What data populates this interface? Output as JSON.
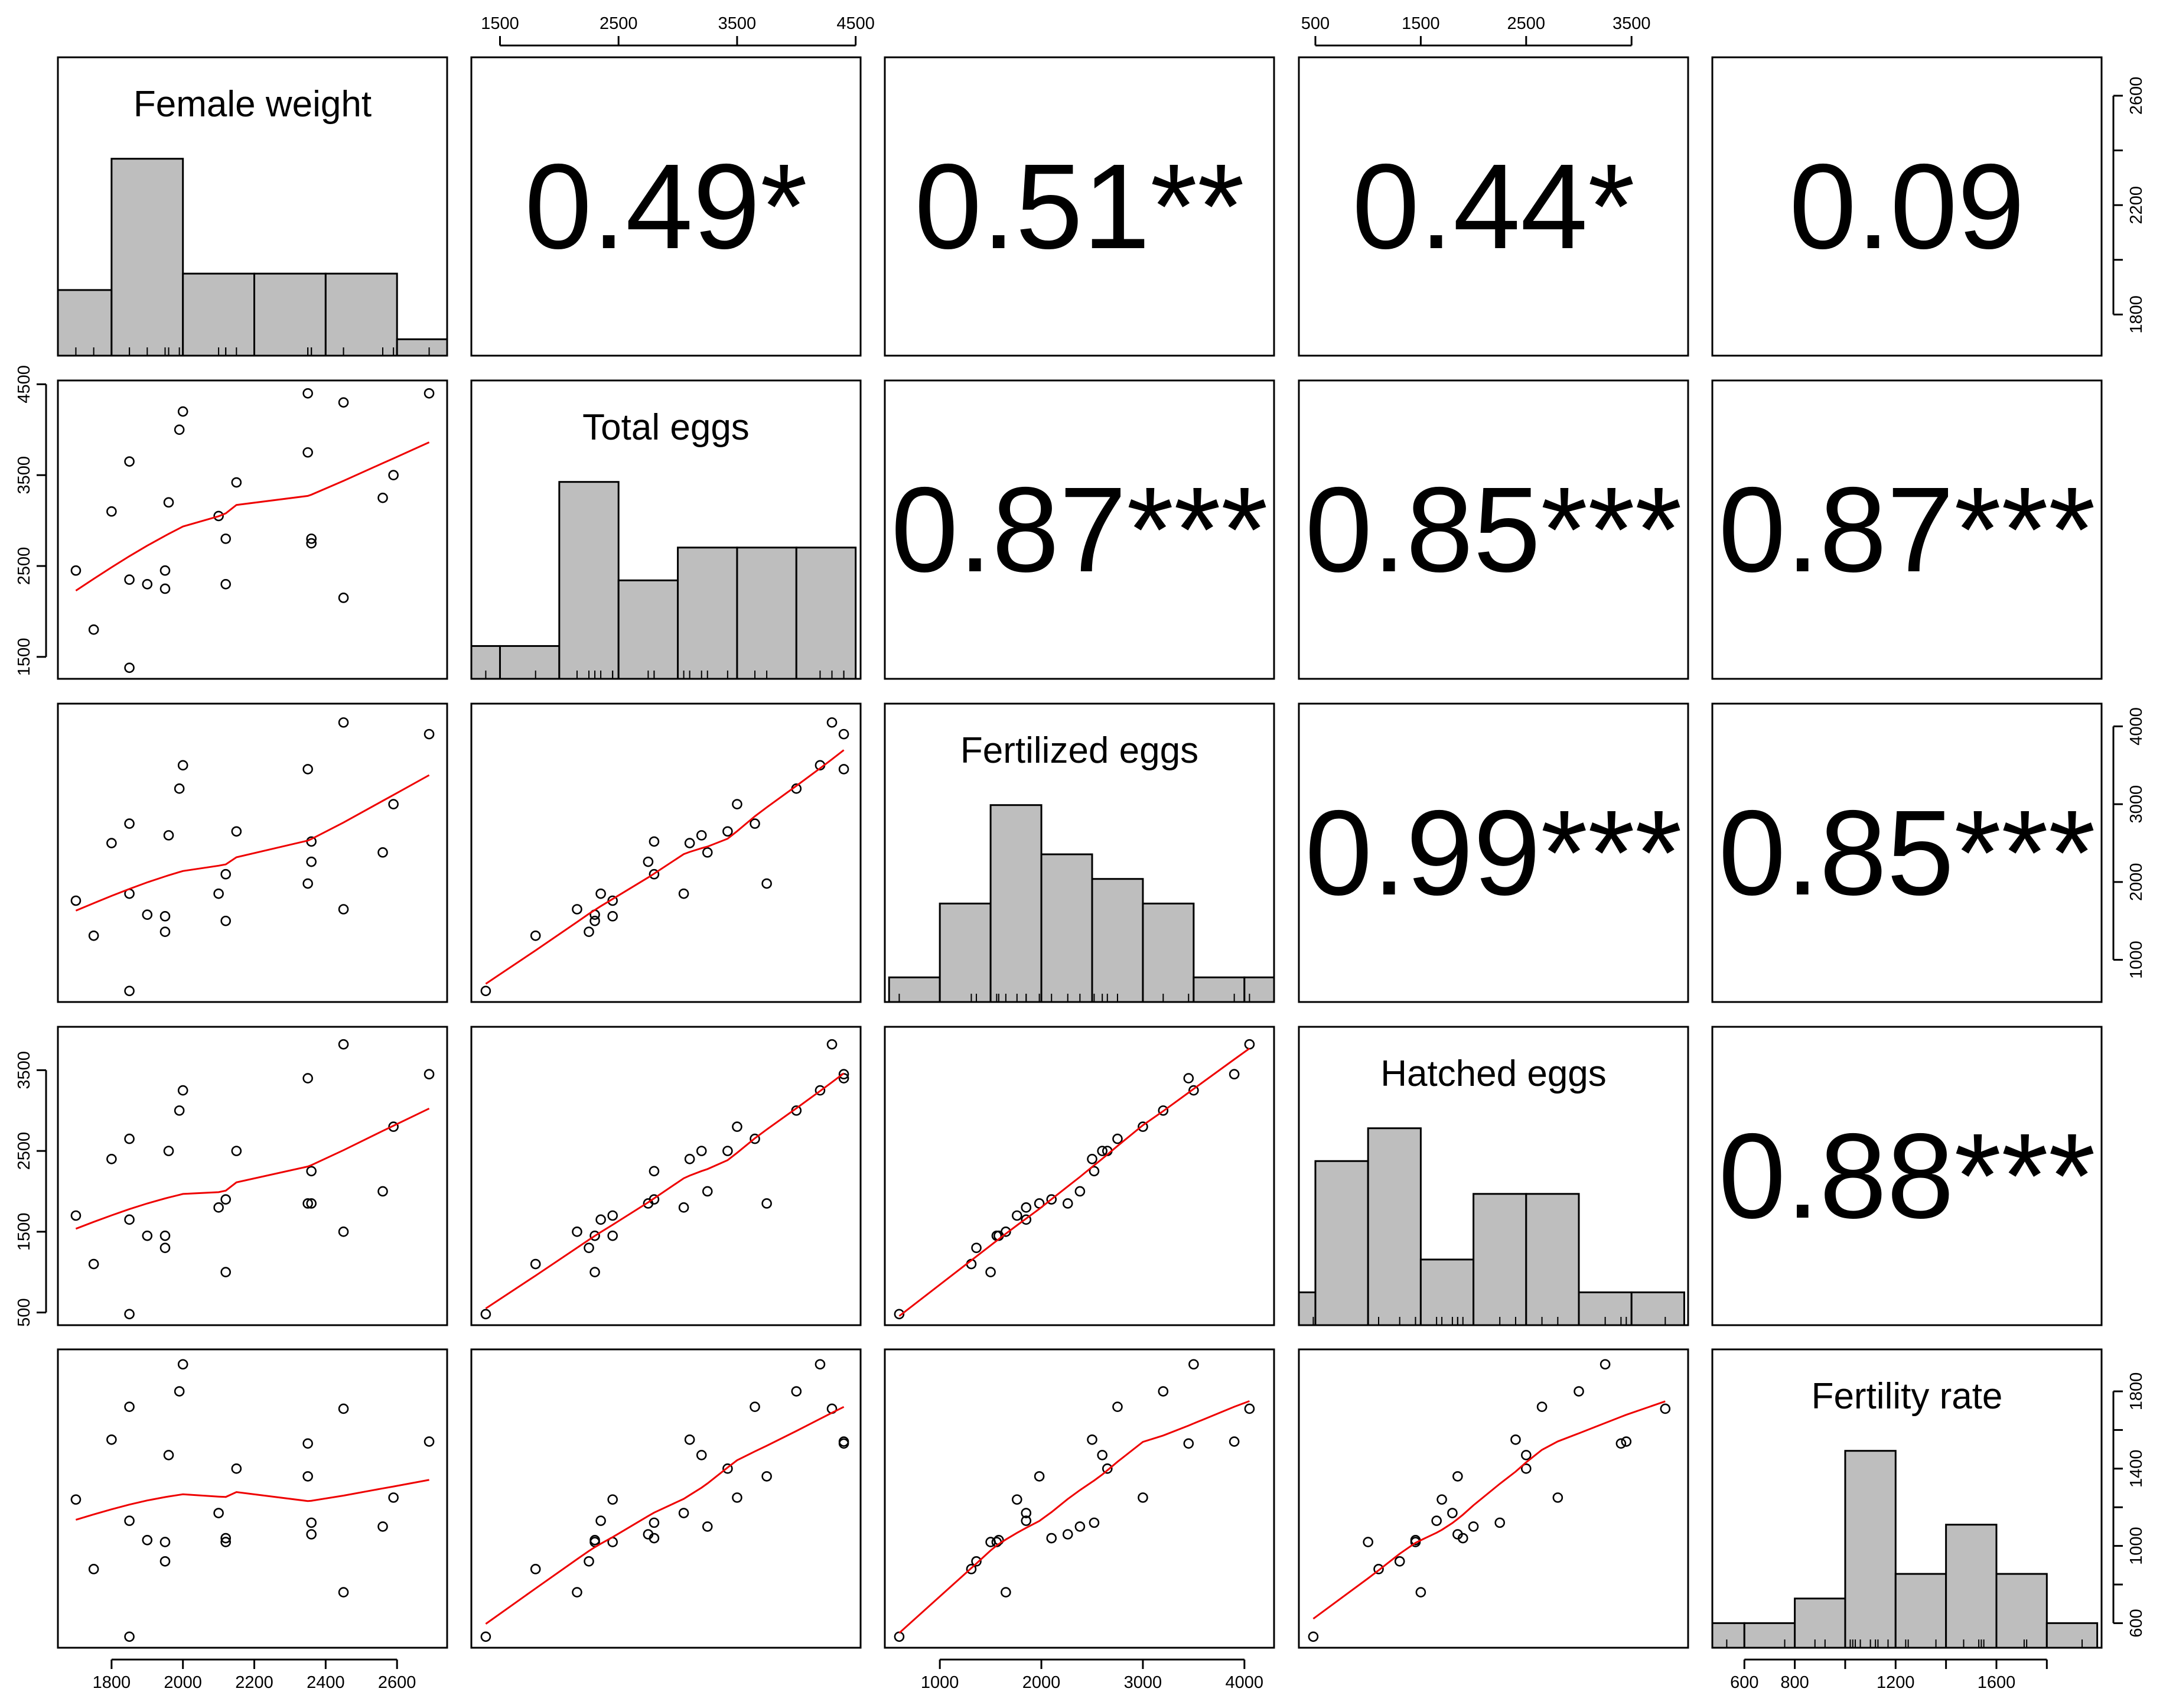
{
  "chart_data": {
    "type": "scatter-matrix",
    "title": "",
    "variables": [
      "Female weight",
      "Total eggs",
      "Fertilized eggs",
      "Hatched eggs",
      "Fertility rate"
    ],
    "ranges": [
      [
        1690,
        2700
      ],
      [
        1380,
        4420
      ],
      [
        600,
        4150
      ],
      [
        480,
        3900
      ],
      [
        530,
        1960
      ]
    ],
    "axis_ticks": [
      [
        "1800",
        "2000",
        "2200",
        "2400",
        "2600"
      ],
      [
        "1500",
        "2500",
        "3500",
        "4500"
      ],
      [
        "1000",
        "2000",
        "3000",
        "4000"
      ],
      [
        "500",
        "1500",
        "2500",
        "3500"
      ],
      [
        "600",
        "800",
        "1000",
        "1200",
        "1400",
        "1600",
        "1800"
      ]
    ],
    "bottom_axis_labels": {
      "female_weight": [
        "1800",
        "2000",
        "2200",
        "2400",
        "2600"
      ],
      "fertilized_eggs": [
        "1000",
        "2000",
        "3000",
        "4000"
      ],
      "fertility_rate": [
        "600",
        "800",
        "1200",
        "1600"
      ]
    },
    "top_axis_labels": {
      "total_eggs": [
        "1500",
        "2500",
        "3500",
        "4500"
      ],
      "hatched_eggs": [
        "500",
        "1500",
        "2500",
        "3500"
      ]
    },
    "left_axis_labels": {
      "total_eggs": [
        "1500",
        "2500",
        "3500",
        "4500"
      ],
      "hatched_eggs": [
        "500",
        "1500",
        "2500",
        "3500"
      ]
    },
    "right_axis_labels": {
      "female_weight": [
        "1800",
        "2200",
        "2600"
      ],
      "fertilized_eggs": [
        "1000",
        "2000",
        "3000",
        "4000"
      ],
      "fertility_rate": [
        "600",
        "1000",
        "1400",
        "1800"
      ]
    },
    "correlations": [
      {
        "row": 0,
        "col": 1,
        "label": "0.49*"
      },
      {
        "row": 0,
        "col": 2,
        "label": "0.51**"
      },
      {
        "row": 0,
        "col": 3,
        "label": "0.44*"
      },
      {
        "row": 0,
        "col": 4,
        "label": "0.09"
      },
      {
        "row": 1,
        "col": 2,
        "label": "0.87***"
      },
      {
        "row": 1,
        "col": 3,
        "label": "0.85***"
      },
      {
        "row": 1,
        "col": 4,
        "label": "0.87***"
      },
      {
        "row": 2,
        "col": 3,
        "label": "0.99***"
      },
      {
        "row": 2,
        "col": 4,
        "label": "0.85***"
      },
      {
        "row": 3,
        "col": 4,
        "label": "0.88***"
      }
    ],
    "histograms": [
      {
        "breaks": [
          1600,
          1800,
          2000,
          2200,
          2400,
          2600,
          2800
        ],
        "counts": [
          4,
          12,
          5,
          5,
          5,
          1
        ]
      },
      {
        "breaks": [
          1000,
          1500,
          2000,
          2500,
          3000,
          3500,
          4000,
          4500
        ],
        "counts": [
          1,
          1,
          6,
          3,
          4,
          4,
          4
        ]
      },
      {
        "breaks": [
          500,
          1000,
          1500,
          2000,
          2500,
          3000,
          3500,
          4000,
          4500
        ],
        "counts": [
          1,
          4,
          8,
          6,
          5,
          4,
          1,
          1
        ]
      },
      {
        "breaks": [
          0,
          500,
          1000,
          1500,
          2000,
          2500,
          3000,
          3500,
          4000
        ],
        "counts": [
          1,
          5,
          6,
          2,
          4,
          4,
          1,
          1
        ]
      },
      {
        "breaks": [
          400,
          600,
          800,
          1000,
          1200,
          1400,
          1600,
          1800,
          2000
        ],
        "counts": [
          1,
          1,
          2,
          8,
          3,
          5,
          3,
          1
        ]
      }
    ],
    "observations": [
      [
        1700,
        2450,
        1760,
        1700,
        1240
      ],
      [
        1750,
        1800,
        1310,
        1100,
        880
      ],
      [
        1800,
        3100,
        2500,
        2400,
        1550
      ],
      [
        1850,
        2350,
        1850,
        1650,
        1130
      ],
      [
        1850,
        1380,
        600,
        480,
        530
      ],
      [
        1850,
        3650,
        2750,
        2650,
        1720
      ],
      [
        1900,
        2300,
        1580,
        1450,
        1030
      ],
      [
        1950,
        2250,
        1360,
        1300,
        920
      ],
      [
        1950,
        2450,
        1560,
        1450,
        1020
      ],
      [
        1960,
        3200,
        2600,
        2500,
        1470
      ],
      [
        1990,
        4000,
        3200,
        3000,
        1800
      ],
      [
        2000,
        4200,
        3500,
        3250,
        1940
      ],
      [
        2100,
        3050,
        1850,
        1800,
        1170
      ],
      [
        2120,
        2800,
        2100,
        1900,
        1040
      ],
      [
        2120,
        2300,
        1500,
        1000,
        1020
      ],
      [
        2150,
        3420,
        2650,
        2500,
        1400
      ],
      [
        2350,
        4400,
        3450,
        3400,
        1530
      ],
      [
        2350,
        3750,
        1980,
        1850,
        1360
      ],
      [
        2360,
        2800,
        2520,
        2250,
        1120
      ],
      [
        2360,
        2750,
        2260,
        1850,
        1060
      ],
      [
        2450,
        4300,
        4050,
        3820,
        1710
      ],
      [
        2450,
        2150,
        1650,
        1500,
        760
      ],
      [
        2560,
        3250,
        2380,
        2000,
        1100
      ],
      [
        2590,
        3500,
        3000,
        2800,
        1250
      ],
      [
        2690,
        4400,
        3900,
        3450,
        1540
      ]
    ]
  }
}
